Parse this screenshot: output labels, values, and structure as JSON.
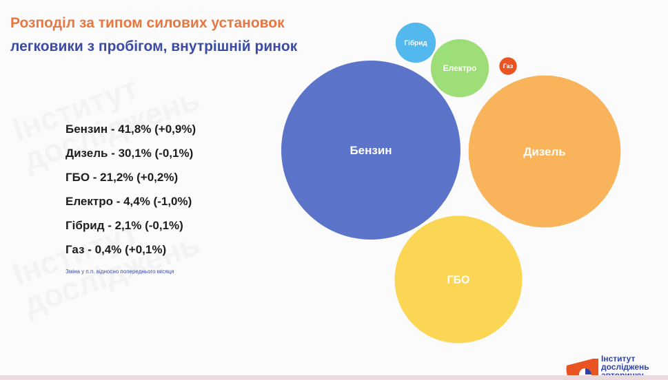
{
  "header": {
    "title": "Розподіл за типом силових установок",
    "subtitle": "легковики з пробігом, внутрішній ринок"
  },
  "legend_list": [
    "Бензин - 41,8% (+0,9%)",
    "Дизель - 30,1% (-0,1%)",
    "ГБО - 21,2% (+0,2%)",
    "Електро - 4,4% (-1,0%)",
    "Гібрид - 2,1% (-0,1%)",
    "Газ - 0,4% (+0,1%)"
  ],
  "note": "Зміна у п.п. відносно попереднього місяця",
  "logo": {
    "line1": "Інститут",
    "line2": "досліджень",
    "line3": "авторинку"
  },
  "chart_data": {
    "type": "bubble",
    "unit": "%",
    "series": [
      {
        "name": "Бензин",
        "value": 41.8,
        "change": 0.9,
        "color": "#5b73c9"
      },
      {
        "name": "Дизель",
        "value": 30.1,
        "change": -0.1,
        "color": "#f9b35a"
      },
      {
        "name": "ГБО",
        "value": 21.2,
        "change": 0.2,
        "color": "#fbd654"
      },
      {
        "name": "Електро",
        "value": 4.4,
        "change": -1.0,
        "color": "#9ede78"
      },
      {
        "name": "Гібрид",
        "value": 2.1,
        "change": -0.1,
        "color": "#52b8ee"
      },
      {
        "name": "Газ",
        "value": 0.4,
        "change": 0.1,
        "color": "#ea5422"
      }
    ]
  }
}
